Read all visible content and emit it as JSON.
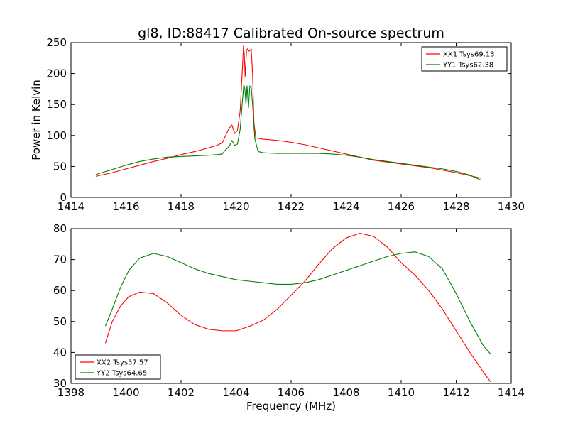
{
  "figure": {
    "title": "gl8, ID:88417 Calibrated On-source spectrum",
    "xlabel": "Frequency (MHz)",
    "ylabel": "Power in Kelvin"
  },
  "colors": {
    "red": "#ff0000",
    "green": "#008000"
  },
  "chart_data": [
    {
      "type": "line",
      "title": "gl8, ID:88417 Calibrated On-source spectrum",
      "xlabel": "",
      "ylabel": "Power in Kelvin",
      "xlim": [
        1414,
        1430
      ],
      "ylim": [
        0,
        250
      ],
      "xticks": [
        1414,
        1416,
        1418,
        1420,
        1422,
        1424,
        1426,
        1428,
        1430
      ],
      "yticks": [
        0,
        50,
        100,
        150,
        200,
        250
      ],
      "legend_position": "top-right",
      "series": [
        {
          "name": "XX1 Tsys69.13",
          "color": "#ff0000",
          "x": [
            1414.9,
            1415.5,
            1416,
            1416.5,
            1417,
            1417.5,
            1418,
            1418.5,
            1419,
            1419.3,
            1419.5,
            1419.6,
            1419.75,
            1419.85,
            1419.95,
            1420.05,
            1420.15,
            1420.22,
            1420.27,
            1420.3,
            1420.33,
            1420.38,
            1420.42,
            1420.48,
            1420.55,
            1420.6,
            1420.65,
            1420.72,
            1421,
            1421.5,
            1422,
            1422.5,
            1423,
            1423.5,
            1424,
            1424.5,
            1425,
            1425.5,
            1426,
            1426.5,
            1427,
            1427.5,
            1428,
            1428.5,
            1428.9
          ],
          "values": [
            34,
            40,
            46,
            52,
            58,
            63,
            69,
            74,
            80,
            84,
            88,
            98,
            112,
            117,
            103,
            108,
            140,
            200,
            245,
            230,
            195,
            238,
            240,
            236,
            240,
            200,
            120,
            96,
            94,
            92,
            89,
            85,
            80,
            75,
            70,
            65,
            60,
            57,
            54,
            51,
            48,
            44,
            40,
            35,
            31
          ]
        },
        {
          "name": "YY1 Tsys62.38",
          "color": "#008000",
          "x": [
            1414.9,
            1415.5,
            1416,
            1416.5,
            1417,
            1417.5,
            1418,
            1418.5,
            1419,
            1419.3,
            1419.5,
            1419.6,
            1419.7,
            1419.78,
            1419.85,
            1419.95,
            1420.05,
            1420.15,
            1420.22,
            1420.28,
            1420.32,
            1420.36,
            1420.4,
            1420.45,
            1420.5,
            1420.55,
            1420.6,
            1420.68,
            1420.8,
            1421,
            1421.5,
            1422,
            1422.5,
            1423,
            1423.5,
            1424,
            1424.5,
            1425,
            1425.5,
            1426,
            1426.5,
            1427,
            1427.5,
            1428,
            1428.5,
            1428.9
          ],
          "values": [
            37,
            45,
            52,
            58,
            62,
            65,
            66,
            67,
            68,
            69,
            70,
            76,
            80,
            85,
            92,
            84,
            86,
            110,
            150,
            182,
            175,
            150,
            180,
            145,
            180,
            178,
            150,
            95,
            74,
            72,
            71,
            71,
            71,
            71,
            70,
            68,
            65,
            61,
            58,
            55,
            52,
            49,
            46,
            42,
            36,
            28
          ]
        }
      ]
    },
    {
      "type": "line",
      "title": "",
      "xlabel": "Frequency (MHz)",
      "ylabel": "",
      "xlim": [
        1398,
        1414
      ],
      "ylim": [
        30,
        80
      ],
      "xticks": [
        1398,
        1400,
        1402,
        1404,
        1406,
        1408,
        1410,
        1412,
        1414
      ],
      "yticks": [
        30,
        40,
        50,
        60,
        70,
        80
      ],
      "legend_position": "bottom-left",
      "series": [
        {
          "name": "XX2 Tsys57.57",
          "color": "#ff0000",
          "x": [
            1399.25,
            1399.5,
            1399.8,
            1400.1,
            1400.5,
            1401,
            1401.5,
            1402,
            1402.5,
            1403,
            1403.5,
            1404,
            1404.5,
            1405,
            1405.5,
            1406,
            1406.5,
            1407,
            1407.5,
            1408,
            1408.5,
            1409,
            1409.5,
            1410,
            1410.5,
            1411,
            1411.5,
            1412,
            1412.5,
            1413,
            1413.25
          ],
          "values": [
            43,
            50,
            55,
            58,
            59.5,
            59,
            56,
            52,
            49,
            47.5,
            47,
            47,
            48.5,
            50.5,
            54,
            58.5,
            63,
            68.5,
            73.5,
            77,
            78.5,
            77.5,
            74,
            69,
            65,
            60,
            54,
            47,
            40,
            33.5,
            30.5
          ]
        },
        {
          "name": "YY2 Tsys64.65",
          "color": "#008000",
          "x": [
            1399.25,
            1399.5,
            1399.8,
            1400.1,
            1400.5,
            1401,
            1401.5,
            1402,
            1402.5,
            1403,
            1403.5,
            1404,
            1404.5,
            1405,
            1405.5,
            1406,
            1406.5,
            1407,
            1407.5,
            1408,
            1408.5,
            1409,
            1409.5,
            1410,
            1410.5,
            1411,
            1411.5,
            1412,
            1412.5,
            1413,
            1413.25
          ],
          "values": [
            48.5,
            54,
            61,
            66.5,
            70.5,
            72,
            71,
            69,
            67,
            65.5,
            64.5,
            63.5,
            63,
            62.5,
            62,
            62,
            62.5,
            63.5,
            65,
            66.5,
            68,
            69.5,
            71,
            72,
            72.5,
            71,
            67,
            59,
            50,
            42,
            39.5
          ]
        }
      ]
    }
  ]
}
